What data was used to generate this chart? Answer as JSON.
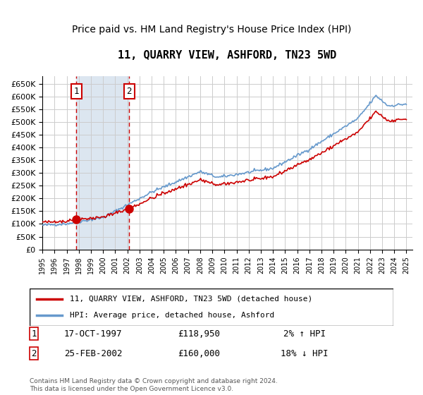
{
  "title": "11, QUARRY VIEW, ASHFORD, TN23 5WD",
  "subtitle": "Price paid vs. HM Land Registry's House Price Index (HPI)",
  "xlabel": "",
  "ylabel": "",
  "ylim": [
    0,
    680000
  ],
  "yticks": [
    0,
    50000,
    100000,
    150000,
    200000,
    250000,
    300000,
    350000,
    400000,
    450000,
    500000,
    550000,
    600000,
    650000
  ],
  "xlim_start": 1995.5,
  "xlim_end": 2025.5,
  "transaction1_x": 1997.79,
  "transaction1_y": 118950,
  "transaction2_x": 2002.14,
  "transaction2_y": 160000,
  "transaction1_label": "1",
  "transaction2_label": "2",
  "legend_line1": "11, QUARRY VIEW, ASHFORD, TN23 5WD (detached house)",
  "legend_line2": "HPI: Average price, detached house, Ashford",
  "table_row1_num": "1",
  "table_row1_date": "17-OCT-1997",
  "table_row1_price": "£118,950",
  "table_row1_hpi": "2% ↑ HPI",
  "table_row2_num": "2",
  "table_row2_date": "25-FEB-2002",
  "table_row2_price": "£160,000",
  "table_row2_hpi": "18% ↓ HPI",
  "footer": "Contains HM Land Registry data © Crown copyright and database right 2024.\nThis data is licensed under the Open Government Licence v3.0.",
  "line_color_property": "#cc0000",
  "line_color_hpi": "#6699cc",
  "shaded_region_color": "#dce6f0",
  "grid_color": "#cccccc",
  "background_color": "#ffffff",
  "title_fontsize": 11,
  "subtitle_fontsize": 10
}
